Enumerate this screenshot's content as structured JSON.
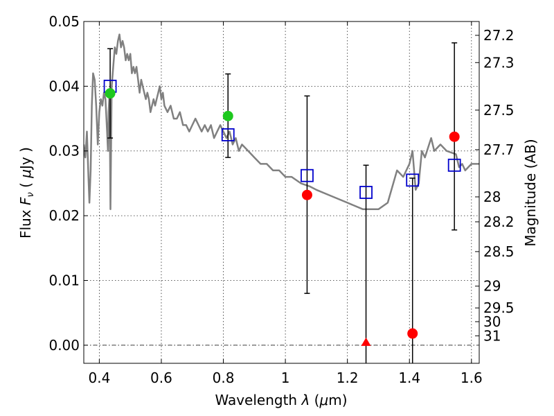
{
  "chart_data": {
    "type": "scatter",
    "title": "",
    "xlabel": "Wavelength  λ (μm)",
    "ylabel": "Flux  Fν  ( μJy )",
    "ylabel_right": "Magnitude (AB)",
    "xlim": [
      0.35,
      1.625
    ],
    "ylim": [
      -0.0028,
      0.05
    ],
    "x_ticks": [
      {
        "value": 0.4,
        "label": "0.4"
      },
      {
        "value": 0.6,
        "label": "0.6"
      },
      {
        "value": 0.8,
        "label": "0.8"
      },
      {
        "value": 1.0,
        "label": "1"
      },
      {
        "value": 1.2,
        "label": "1.2"
      },
      {
        "value": 1.4,
        "label": "1.4"
      },
      {
        "value": 1.6,
        "label": "1.6"
      }
    ],
    "y_ticks": [
      {
        "value": 0.0,
        "label": "0.00"
      },
      {
        "value": 0.01,
        "label": "0.01"
      },
      {
        "value": 0.02,
        "label": "0.02"
      },
      {
        "value": 0.03,
        "label": "0.03"
      },
      {
        "value": 0.04,
        "label": "0.04"
      },
      {
        "value": 0.05,
        "label": "0.05"
      }
    ],
    "right_ticks": [
      {
        "mag": 27.2,
        "label": "27.2"
      },
      {
        "mag": 27.3,
        "label": "27.3"
      },
      {
        "mag": 27.5,
        "label": "27.5"
      },
      {
        "mag": 27.7,
        "label": "27.7"
      },
      {
        "mag": 28,
        "label": "28"
      },
      {
        "mag": 28.2,
        "label": "28.2"
      },
      {
        "mag": 28.5,
        "label": "28.5"
      },
      {
        "mag": 29,
        "label": "29"
      },
      {
        "mag": 29.5,
        "label": "29.5"
      },
      {
        "mag": 30,
        "label": "30"
      },
      {
        "mag": 31,
        "label": "31"
      }
    ],
    "series": [
      {
        "name": "template spectrum",
        "kind": "line",
        "color": "#808080",
        "x": [
          0.35,
          0.355,
          0.36,
          0.365,
          0.368,
          0.372,
          0.376,
          0.38,
          0.385,
          0.39,
          0.395,
          0.4,
          0.405,
          0.41,
          0.415,
          0.42,
          0.425,
          0.428,
          0.43,
          0.433,
          0.436,
          0.44,
          0.445,
          0.45,
          0.455,
          0.46,
          0.465,
          0.47,
          0.475,
          0.48,
          0.485,
          0.49,
          0.495,
          0.5,
          0.505,
          0.51,
          0.515,
          0.52,
          0.525,
          0.53,
          0.535,
          0.54,
          0.545,
          0.55,
          0.555,
          0.56,
          0.565,
          0.57,
          0.575,
          0.58,
          0.585,
          0.59,
          0.595,
          0.6,
          0.605,
          0.61,
          0.62,
          0.63,
          0.64,
          0.65,
          0.66,
          0.67,
          0.68,
          0.69,
          0.7,
          0.71,
          0.72,
          0.73,
          0.74,
          0.75,
          0.76,
          0.77,
          0.78,
          0.79,
          0.8,
          0.81,
          0.82,
          0.83,
          0.84,
          0.85,
          0.86,
          0.88,
          0.9,
          0.92,
          0.94,
          0.96,
          0.98,
          1.0,
          1.02,
          1.05,
          1.08,
          1.1,
          1.15,
          1.2,
          1.25,
          1.3,
          1.33,
          1.36,
          1.38,
          1.4,
          1.41,
          1.42,
          1.43,
          1.44,
          1.45,
          1.47,
          1.48,
          1.5,
          1.52,
          1.55,
          1.56,
          1.57,
          1.58,
          1.6,
          1.625
        ],
        "y": [
          0.031,
          0.029,
          0.033,
          0.026,
          0.022,
          0.027,
          0.037,
          0.042,
          0.041,
          0.037,
          0.031,
          0.036,
          0.038,
          0.037,
          0.039,
          0.038,
          0.033,
          0.03,
          0.036,
          0.039,
          0.021,
          0.04,
          0.043,
          0.046,
          0.045,
          0.047,
          0.048,
          0.046,
          0.047,
          0.046,
          0.044,
          0.045,
          0.044,
          0.045,
          0.042,
          0.043,
          0.042,
          0.043,
          0.041,
          0.039,
          0.041,
          0.04,
          0.039,
          0.038,
          0.039,
          0.038,
          0.036,
          0.037,
          0.038,
          0.037,
          0.038,
          0.039,
          0.04,
          0.038,
          0.039,
          0.037,
          0.036,
          0.037,
          0.035,
          0.035,
          0.036,
          0.034,
          0.034,
          0.033,
          0.034,
          0.035,
          0.034,
          0.033,
          0.034,
          0.033,
          0.034,
          0.032,
          0.033,
          0.034,
          0.033,
          0.032,
          0.033,
          0.031,
          0.032,
          0.03,
          0.031,
          0.03,
          0.029,
          0.028,
          0.028,
          0.027,
          0.027,
          0.026,
          0.026,
          0.025,
          0.0245,
          0.024,
          0.023,
          0.022,
          0.021,
          0.021,
          0.022,
          0.027,
          0.026,
          0.028,
          0.03,
          0.024,
          0.025,
          0.03,
          0.029,
          0.032,
          0.03,
          0.031,
          0.03,
          0.0295,
          0.0275,
          0.028,
          0.027,
          0.028,
          0.028
        ]
      },
      {
        "name": "model fluxes",
        "kind": "marker",
        "marker": "open-square",
        "color": "#0000cc",
        "x": [
          0.435,
          0.815,
          1.07,
          1.26,
          1.41,
          1.545
        ],
        "y": [
          0.04,
          0.0325,
          0.0262,
          0.0236,
          0.0255,
          0.0278
        ]
      },
      {
        "name": "detections",
        "kind": "marker",
        "marker": "circle",
        "color": "#1ec81e",
        "x": [
          0.435,
          0.815
        ],
        "y": [
          0.0389,
          0.0354
        ]
      },
      {
        "name": "observed fluxes",
        "kind": "marker",
        "marker": "circle",
        "color": "#ff0000",
        "x": [
          1.07,
          1.41,
          1.545
        ],
        "y": [
          0.0232,
          0.0018,
          0.0322
        ]
      },
      {
        "name": "upper limit",
        "kind": "marker",
        "marker": "triangle",
        "color": "#ff0000",
        "x": [
          1.26
        ],
        "y": [
          0.0
        ]
      },
      {
        "name": "error bars",
        "kind": "errorbar",
        "color": "#000000",
        "x": [
          0.435,
          0.815,
          1.07,
          1.26,
          1.41,
          1.545
        ],
        "low": [
          0.032,
          0.029,
          0.008,
          -0.0028,
          -0.0028,
          0.0178
        ],
        "high": [
          0.0458,
          0.0419,
          0.0385,
          0.0278,
          0.0258,
          0.0467
        ]
      }
    ]
  }
}
